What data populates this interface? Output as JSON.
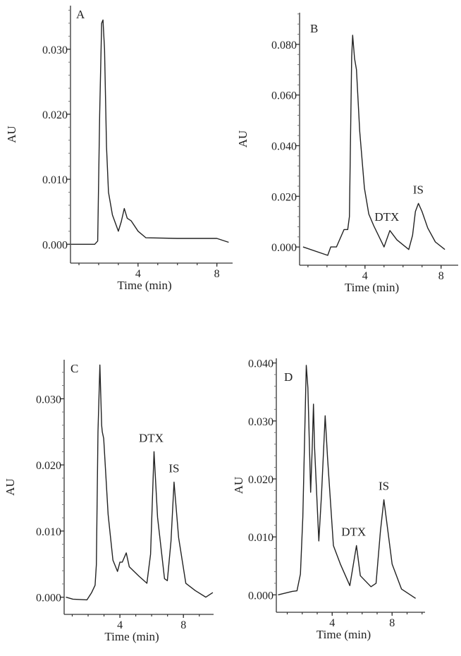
{
  "chart_data": [
    {
      "type": "line",
      "panel_label": "A",
      "xlabel": "Time (min)",
      "ylabel": "AU",
      "xlim": [
        0.57,
        8.8
      ],
      "ylim": [
        -0.0029,
        0.0367
      ],
      "x_ticks": [
        {
          "value": 4,
          "label": "4"
        },
        {
          "value": 8,
          "label": "8"
        }
      ],
      "y_ticks": [
        {
          "value": 0,
          "label": "0.000"
        },
        {
          "value": 0.01,
          "label": "0.010"
        },
        {
          "value": 0.02,
          "label": "0.020"
        },
        {
          "value": 0.03,
          "label": "0.030"
        }
      ],
      "grid": false,
      "annotations": [],
      "series": [
        {
          "points": [
            [
              0.6,
              0
            ],
            [
              1.8,
              0
            ],
            [
              1.95,
              0.0005
            ],
            [
              2.05,
              0.02
            ],
            [
              2.15,
              0.034
            ],
            [
              2.22,
              0.0345
            ],
            [
              2.3,
              0.03
            ],
            [
              2.4,
              0.015
            ],
            [
              2.5,
              0.008
            ],
            [
              2.7,
              0.0045
            ],
            [
              3.0,
              0.002
            ],
            [
              3.15,
              0.0035
            ],
            [
              3.3,
              0.0055
            ],
            [
              3.45,
              0.004
            ],
            [
              3.65,
              0.0036
            ],
            [
              4.0,
              0.002
            ],
            [
              4.4,
              0.001
            ],
            [
              6.0,
              0.0009
            ],
            [
              8.0,
              0.0009
            ],
            [
              8.6,
              0.0003
            ]
          ]
        }
      ]
    },
    {
      "type": "line",
      "panel_label": "B",
      "xlabel": "Time (min)",
      "ylabel": "AU",
      "xlim": [
        0.56,
        8.9
      ],
      "ylim": [
        -0.0072,
        0.0925
      ],
      "x_ticks": [
        {
          "value": 4,
          "label": "4"
        },
        {
          "value": 8,
          "label": "8"
        }
      ],
      "y_ticks": [
        {
          "value": 0,
          "label": "0.000"
        },
        {
          "value": 0.02,
          "label": "0.020"
        },
        {
          "value": 0.04,
          "label": "0.040"
        },
        {
          "value": 0.06,
          "label": "0.060"
        },
        {
          "value": 0.08,
          "label": "0.080"
        }
      ],
      "grid": false,
      "annotations": [
        {
          "text": "DTX",
          "x": 5.3,
          "y": 0.0065
        },
        {
          "text": "IS",
          "x": 6.8,
          "y": 0.0172
        }
      ],
      "series": [
        {
          "points": [
            [
              0.74,
              0
            ],
            [
              2.04,
              -0.0033
            ],
            [
              2.2,
              0.0
            ],
            [
              2.5,
              0.0
            ],
            [
              2.9,
              0.0069
            ],
            [
              3.09,
              0.0069
            ],
            [
              3.18,
              0.012
            ],
            [
              3.3,
              0.075
            ],
            [
              3.35,
              0.0836
            ],
            [
              3.45,
              0.0744
            ],
            [
              3.55,
              0.07
            ],
            [
              3.72,
              0.0457
            ],
            [
              3.97,
              0.0232
            ],
            [
              4.2,
              0.013
            ],
            [
              4.46,
              0.0084
            ],
            [
              5.0,
              0.0
            ],
            [
              5.31,
              0.0065
            ],
            [
              5.68,
              0.0028
            ],
            [
              6.3,
              -0.001
            ],
            [
              6.5,
              0.0046
            ],
            [
              6.65,
              0.014
            ],
            [
              6.81,
              0.0172
            ],
            [
              7.0,
              0.014
            ],
            [
              7.3,
              0.0075
            ],
            [
              7.7,
              0.002
            ],
            [
              8.2,
              -0.001
            ]
          ]
        }
      ]
    },
    {
      "type": "line",
      "panel_label": "C",
      "xlabel": "Time (min)",
      "ylabel": "AU",
      "xlim": [
        0.49,
        9.9
      ],
      "ylim": [
        -0.0026,
        0.0359
      ],
      "x_ticks": [
        {
          "value": 4,
          "label": "4"
        },
        {
          "value": 8,
          "label": "8"
        }
      ],
      "y_ticks": [
        {
          "value": 0,
          "label": "0.000"
        },
        {
          "value": 0.01,
          "label": "0.010"
        },
        {
          "value": 0.02,
          "label": "0.020"
        },
        {
          "value": 0.03,
          "label": "0.030"
        }
      ],
      "grid": false,
      "annotations": [
        {
          "text": "DTX",
          "x": 6.15,
          "y": 0.022
        },
        {
          "text": "IS",
          "x": 7.41,
          "y": 0.0174
        }
      ],
      "series": [
        {
          "points": [
            [
              0.6,
              0
            ],
            [
              1.04,
              -0.0003
            ],
            [
              1.93,
              -0.0004
            ],
            [
              2.22,
              0.0007
            ],
            [
              2.44,
              0.0018
            ],
            [
              2.52,
              0.0049
            ],
            [
              2.62,
              0.025
            ],
            [
              2.74,
              0.0351
            ],
            [
              2.85,
              0.026
            ],
            [
              2.89,
              0.025
            ],
            [
              2.98,
              0.024
            ],
            [
              3.26,
              0.0125
            ],
            [
              3.56,
              0.0056
            ],
            [
              3.85,
              0.0039
            ],
            [
              4.0,
              0.0053
            ],
            [
              4.15,
              0.0053
            ],
            [
              4.4,
              0.0067
            ],
            [
              4.59,
              0.0046
            ],
            [
              5.19,
              0.0032
            ],
            [
              5.7,
              0.0021
            ],
            [
              5.93,
              0.0065
            ],
            [
              6.15,
              0.022
            ],
            [
              6.37,
              0.0121
            ],
            [
              6.81,
              0.0028
            ],
            [
              6.99,
              0.0025
            ],
            [
              7.22,
              0.0085
            ],
            [
              7.41,
              0.0174
            ],
            [
              7.7,
              0.009
            ],
            [
              8.15,
              0.0021
            ],
            [
              8.74,
              0.001
            ],
            [
              9.41,
              0.0
            ],
            [
              9.85,
              0.0007
            ]
          ]
        }
      ]
    },
    {
      "type": "line",
      "panel_label": "D",
      "xlabel": "Time (min)",
      "ylabel": "AU",
      "xlim": [
        0.27,
        10.2
      ],
      "ylim": [
        -0.003,
        0.0408
      ],
      "x_ticks": [
        {
          "value": 4,
          "label": "4"
        },
        {
          "value": 8,
          "label": "8"
        }
      ],
      "y_ticks": [
        {
          "value": 0,
          "label": "0.000"
        },
        {
          "value": 0.01,
          "label": "0.010"
        },
        {
          "value": 0.02,
          "label": "0.020"
        },
        {
          "value": 0.03,
          "label": "0.030"
        },
        {
          "value": 0.04,
          "label": "0.040"
        }
      ],
      "grid": false,
      "annotations": [
        {
          "text": "DTX",
          "x": 5.62,
          "y": 0.0085
        },
        {
          "text": "IS",
          "x": 7.45,
          "y": 0.0164
        }
      ],
      "series": [
        {
          "points": [
            [
              0.39,
              0
            ],
            [
              1.33,
              0.0006
            ],
            [
              1.65,
              0.0007
            ],
            [
              1.88,
              0.0036
            ],
            [
              2.04,
              0.0134
            ],
            [
              2.27,
              0.0396
            ],
            [
              2.38,
              0.0357
            ],
            [
              2.56,
              0.0177
            ],
            [
              2.67,
              0.0256
            ],
            [
              2.75,
              0.0329
            ],
            [
              2.82,
              0.0256
            ],
            [
              3.11,
              0.0093
            ],
            [
              3.29,
              0.0175
            ],
            [
              3.53,
              0.0309
            ],
            [
              3.69,
              0.0236
            ],
            [
              4.08,
              0.0085
            ],
            [
              4.55,
              0.0053
            ],
            [
              5.18,
              0.0016
            ],
            [
              5.62,
              0.0085
            ],
            [
              5.88,
              0.0033
            ],
            [
              6.59,
              0.0014
            ],
            [
              6.93,
              0.002
            ],
            [
              7.22,
              0.011
            ],
            [
              7.45,
              0.0164
            ],
            [
              8.0,
              0.0053
            ],
            [
              8.63,
              0.001
            ],
            [
              9.57,
              -0.0006
            ]
          ]
        }
      ]
    }
  ]
}
